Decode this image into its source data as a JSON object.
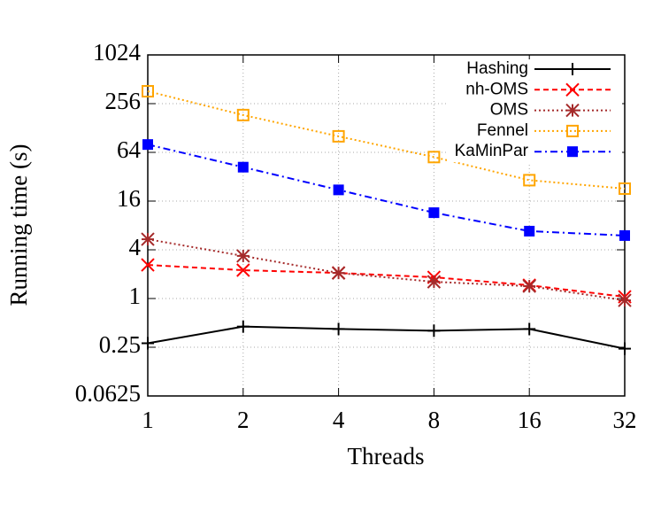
{
  "chart_data": {
    "type": "line",
    "x_label": "Threads",
    "y_label": "Running time (s)",
    "x": [
      1,
      2,
      4,
      8,
      16,
      32
    ],
    "xlim": [
      1,
      32
    ],
    "xticks": [
      1,
      2,
      4,
      8,
      16,
      32
    ],
    "log_x": true,
    "ylim": [
      0.0625,
      1024
    ],
    "yticks": [
      0.0625,
      0.25,
      1,
      4,
      16,
      64,
      256,
      1024
    ],
    "log_y": true,
    "grid": true,
    "legend": "top-right",
    "series": [
      {
        "name": "Hashing",
        "color": "#000000",
        "marker": "plus",
        "line_style": "solid",
        "values": [
          0.28,
          0.45,
          0.42,
          0.4,
          0.42,
          0.24
        ]
      },
      {
        "name": "nh-OMS",
        "color": "#ff0000",
        "marker": "cross",
        "line_style": "dashed",
        "values": [
          2.6,
          2.24,
          2.07,
          1.83,
          1.46,
          1.05
        ]
      },
      {
        "name": "OMS",
        "color": "#a52a2a",
        "marker": "star",
        "line_style": "dotted",
        "values": [
          5.4,
          3.36,
          2.07,
          1.61,
          1.42,
          0.95
        ]
      },
      {
        "name": "Fennel",
        "color": "#ffa500",
        "marker": "open-square",
        "line_style": "dotted",
        "values": [
          364,
          185,
          101,
          56,
          29,
          22.8
        ]
      },
      {
        "name": "KaMinPar",
        "color": "#0000ff",
        "marker": "filled-square",
        "line_style": "dash-dot",
        "values": [
          80,
          42,
          22,
          11.5,
          6.8,
          6.0
        ]
      }
    ]
  }
}
